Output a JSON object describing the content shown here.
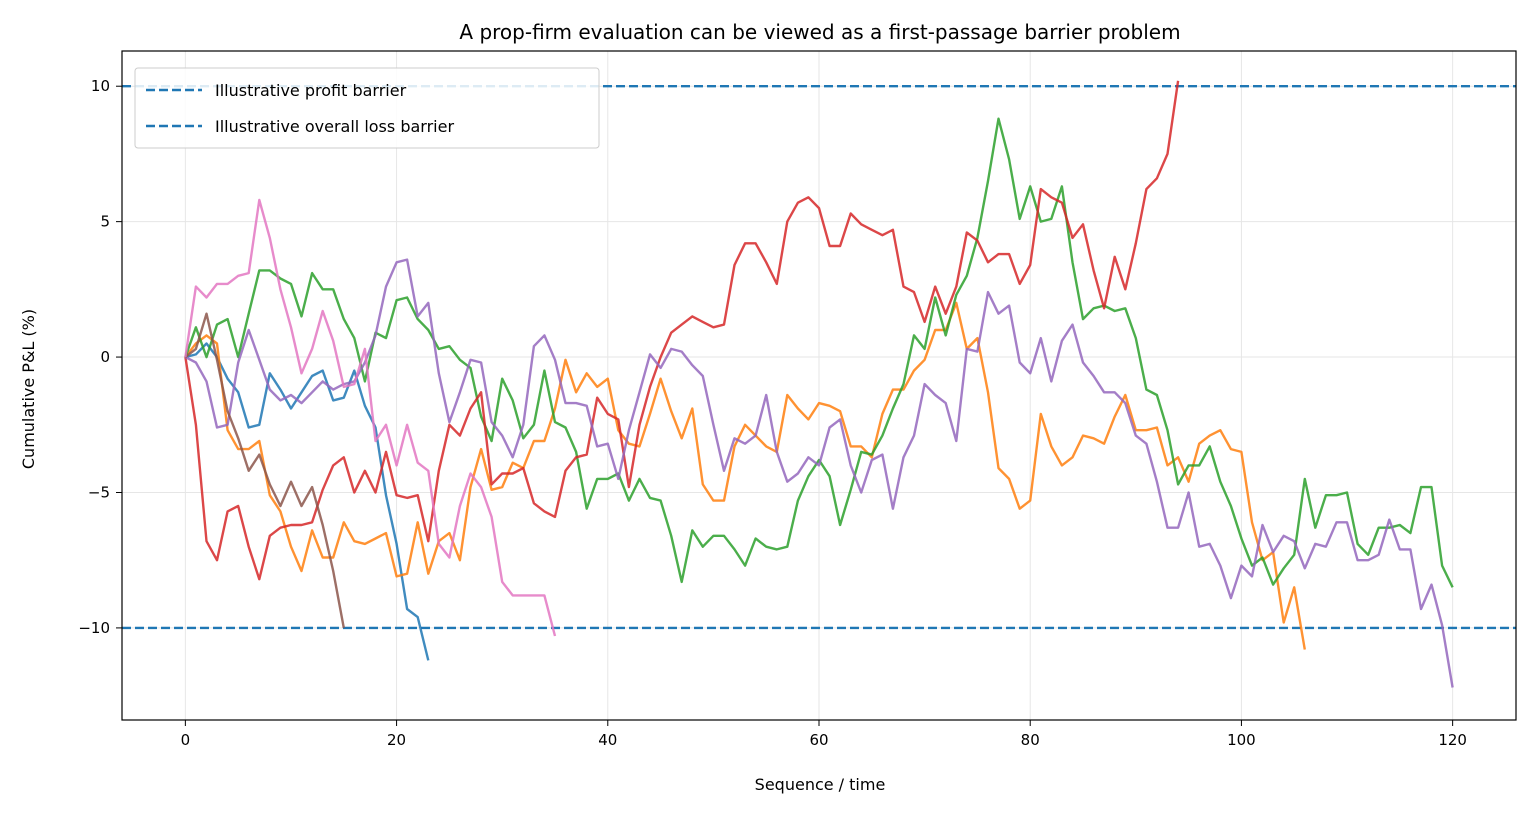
{
  "chart_data": {
    "type": "line",
    "title": "A prop-firm evaluation can be viewed as a first-passage barrier problem",
    "xlabel": "Sequence / time",
    "ylabel": "Cumulative P&L (%)",
    "xlim": [
      -6,
      126
    ],
    "ylim": [
      -13.4,
      11.3
    ],
    "xticks": [
      0,
      20,
      40,
      60,
      80,
      100,
      120
    ],
    "xtick_labels": [
      "0",
      "20",
      "40",
      "60",
      "80",
      "100",
      "120"
    ],
    "yticks": [
      -10,
      -5,
      0,
      5,
      10
    ],
    "ytick_labels": [
      "−10",
      "−5",
      "0",
      "5",
      "10"
    ],
    "grid": true,
    "legend_placement": "top-left",
    "barriers": [
      {
        "label": "Illustrative profit barrier",
        "y": 10,
        "color": "#1f77b4",
        "style": "dashed"
      },
      {
        "label": "Illustrative overall loss barrier",
        "y": -10,
        "color": "#1f77b4",
        "style": "dashed"
      }
    ],
    "series": [
      {
        "color": "#1f77b4",
        "x": [
          0,
          1,
          2,
          3,
          4,
          5,
          6,
          7,
          8,
          9,
          10,
          11,
          12,
          13,
          14,
          15,
          16,
          17,
          18,
          19,
          20,
          21,
          22,
          23
        ],
        "y": [
          0,
          0.1,
          0.5,
          0,
          -0.8,
          -1.3,
          -2.6,
          -2.5,
          -0.6,
          -1.2,
          -1.9,
          -1.3,
          -0.7,
          -0.5,
          -1.6,
          -1.5,
          -0.5,
          -1.8,
          -2.6,
          -5.1,
          -6.9,
          -9.3,
          -9.6,
          -11.2
        ]
      },
      {
        "color": "#ff7f0e",
        "x": [
          0,
          1,
          2,
          3,
          4,
          5,
          6,
          7,
          8,
          9,
          10,
          11,
          12,
          13,
          14,
          15,
          16,
          17,
          18,
          19,
          20,
          21,
          22,
          23,
          24,
          25,
          26,
          27,
          28,
          29,
          30,
          31,
          32,
          33,
          34,
          35,
          36,
          37,
          38,
          39,
          40,
          41,
          42,
          43,
          44,
          45,
          46,
          47,
          48,
          49,
          50,
          51,
          52,
          53,
          54,
          55,
          56,
          57,
          58,
          59,
          60,
          61,
          62,
          63,
          64,
          65,
          66,
          67,
          68,
          69,
          70,
          71,
          72,
          73,
          74,
          75,
          76,
          77,
          78,
          79,
          80,
          81,
          82,
          83,
          84,
          85,
          86,
          87,
          88,
          89,
          90,
          91,
          92,
          93,
          94,
          95,
          96,
          97,
          98,
          99,
          100,
          101,
          102,
          103,
          104,
          105,
          106
        ],
        "y": [
          0,
          0.5,
          0.8,
          0.5,
          -2.7,
          -3.4,
          -3.4,
          -3.1,
          -5.1,
          -5.7,
          -7,
          -7.9,
          -6.4,
          -7.4,
          -7.4,
          -6.1,
          -6.8,
          -6.9,
          -6.7,
          -6.5,
          -8.1,
          -8,
          -6.1,
          -8,
          -6.8,
          -6.5,
          -7.5,
          -4.8,
          -3.4,
          -4.9,
          -4.8,
          -3.9,
          -4.1,
          -3.1,
          -3.1,
          -1.9,
          -0.1,
          -1.3,
          -0.6,
          -1.1,
          -0.8,
          -2.7,
          -3.2,
          -3.3,
          -2.1,
          -0.8,
          -2,
          -3,
          -1.9,
          -4.7,
          -5.3,
          -5.3,
          -3.3,
          -2.5,
          -2.9,
          -3.3,
          -3.5,
          -1.4,
          -1.9,
          -2.3,
          -1.7,
          -1.8,
          -2,
          -3.3,
          -3.3,
          -3.7,
          -2.1,
          -1.2,
          -1.2,
          -0.5,
          -0.1,
          1,
          1,
          2,
          0.3,
          0.7,
          -1.3,
          -4.1,
          -4.5,
          -5.6,
          -5.3,
          -2.1,
          -3.3,
          -4,
          -3.7,
          -2.9,
          -3,
          -3.2,
          -2.2,
          -1.4,
          -2.7,
          -2.7,
          -2.6,
          -4,
          -3.7,
          -4.6,
          -3.2,
          -2.9,
          -2.7,
          -3.4,
          -3.5,
          -6.1,
          -7.5,
          -7.2,
          -9.8,
          -8.5,
          -10.8
        ]
      },
      {
        "color": "#2ca02c",
        "x": [
          0,
          1,
          2,
          3,
          4,
          5,
          6,
          7,
          8,
          9,
          10,
          11,
          12,
          13,
          14,
          15,
          16,
          17,
          18,
          19,
          20,
          21,
          22,
          23,
          24,
          25,
          26,
          27,
          28,
          29,
          30,
          31,
          32,
          33,
          34,
          35,
          36,
          37,
          38,
          39,
          40,
          41,
          42,
          43,
          44,
          45,
          46,
          47,
          48,
          49,
          50,
          51,
          52,
          53,
          54,
          55,
          56,
          57,
          58,
          59,
          60,
          61,
          62,
          63,
          64,
          65,
          66,
          67,
          68,
          69,
          70,
          71,
          72,
          73,
          74,
          75,
          76,
          77,
          78,
          79,
          80,
          81,
          82,
          83,
          84,
          85,
          86,
          87,
          88,
          89,
          90,
          91,
          92,
          93,
          94,
          95,
          96,
          97,
          98,
          99,
          100,
          101,
          102,
          103,
          104,
          105,
          106,
          107,
          108,
          109,
          110,
          111,
          112,
          113,
          114,
          115,
          116,
          117,
          118,
          119,
          120
        ],
        "y": [
          0,
          1.1,
          0,
          1.2,
          1.4,
          0,
          1.6,
          3.2,
          3.2,
          2.9,
          2.7,
          1.5,
          3.1,
          2.5,
          2.5,
          1.4,
          0.7,
          -0.9,
          0.9,
          0.7,
          2.1,
          2.2,
          1.4,
          1,
          0.3,
          0.4,
          -0.1,
          -0.4,
          -2.2,
          -3.1,
          -0.8,
          -1.6,
          -3,
          -2.5,
          -0.5,
          -2.4,
          -2.6,
          -3.5,
          -5.6,
          -4.5,
          -4.5,
          -4.3,
          -5.3,
          -4.5,
          -5.2,
          -5.3,
          -6.6,
          -8.3,
          -6.4,
          -7,
          -6.6,
          -6.6,
          -7.1,
          -7.7,
          -6.7,
          -7,
          -7.1,
          -7,
          -5.3,
          -4.4,
          -3.8,
          -4.4,
          -6.2,
          -4.9,
          -3.5,
          -3.6,
          -2.9,
          -1.9,
          -1,
          0.8,
          0.3,
          2.2,
          0.8,
          2.3,
          3,
          4.4,
          6.5,
          8.8,
          7.3,
          5.1,
          6.3,
          5,
          5.1,
          6.3,
          3.5,
          1.4,
          1.8,
          1.9,
          1.7,
          1.8,
          0.7,
          -1.2,
          -1.4,
          -2.7,
          -4.7,
          -4,
          -4,
          -3.3,
          -4.6,
          -5.5,
          -6.7,
          -7.7,
          -7.4,
          -8.4,
          -7.8,
          -7.3,
          -4.5,
          -6.3,
          -5.1,
          -5.1,
          -5,
          -6.9,
          -7.3,
          -6.3,
          -6.3,
          -6.2,
          -6.5,
          -4.8,
          -4.8,
          -7.7,
          -8.5
        ]
      },
      {
        "color": "#d62728",
        "x": [
          0,
          1,
          2,
          3,
          4,
          5,
          6,
          7,
          8,
          9,
          10,
          11,
          12,
          13,
          14,
          15,
          16,
          17,
          18,
          19,
          20,
          21,
          22,
          23,
          24,
          25,
          26,
          27,
          28,
          29,
          30,
          31,
          32,
          33,
          34,
          35,
          36,
          37,
          38,
          39,
          40,
          41,
          42,
          43,
          44,
          45,
          46,
          47,
          48,
          49,
          50,
          51,
          52,
          53,
          54,
          55,
          56,
          57,
          58,
          59,
          60,
          61,
          62,
          63,
          64,
          65,
          66,
          67,
          68,
          69,
          70,
          71,
          72,
          73,
          74,
          75,
          76,
          77,
          78,
          79,
          80,
          81,
          82,
          83,
          84,
          85,
          86,
          87,
          88,
          89,
          90,
          91,
          92,
          93,
          94
        ],
        "y": [
          0,
          -2.5,
          -6.8,
          -7.5,
          -5.7,
          -5.5,
          -7,
          -8.2,
          -6.6,
          -6.3,
          -6.2,
          -6.2,
          -6.1,
          -4.9,
          -4,
          -3.7,
          -5,
          -4.2,
          -5,
          -3.5,
          -5.1,
          -5.2,
          -5.1,
          -6.8,
          -4.2,
          -2.5,
          -2.9,
          -1.9,
          -1.3,
          -4.7,
          -4.3,
          -4.3,
          -4.1,
          -5.4,
          -5.7,
          -5.9,
          -4.2,
          -3.7,
          -3.6,
          -1.5,
          -2.1,
          -2.3,
          -4.8,
          -2.5,
          -1.1,
          0,
          0.9,
          1.2,
          1.5,
          1.3,
          1.1,
          1.2,
          3.4,
          4.2,
          4.2,
          3.5,
          2.7,
          5,
          5.7,
          5.9,
          5.5,
          4.1,
          4.1,
          5.3,
          4.9,
          4.7,
          4.5,
          4.7,
          2.6,
          2.4,
          1.3,
          2.6,
          1.6,
          2.6,
          4.6,
          4.3,
          3.5,
          3.8,
          3.8,
          2.7,
          3.4,
          6.2,
          5.9,
          5.7,
          4.4,
          4.9,
          3.2,
          1.8,
          3.7,
          2.5,
          4.2,
          6.2,
          6.6,
          7.5,
          10.2
        ]
      },
      {
        "color": "#9467bd",
        "x": [
          0,
          1,
          2,
          3,
          4,
          5,
          6,
          7,
          8,
          9,
          10,
          11,
          12,
          13,
          14,
          15,
          16,
          17,
          18,
          19,
          20,
          21,
          22,
          23,
          24,
          25,
          26,
          27,
          28,
          29,
          30,
          31,
          32,
          33,
          34,
          35,
          36,
          37,
          38,
          39,
          40,
          41,
          42,
          43,
          44,
          45,
          46,
          47,
          48,
          49,
          50,
          51,
          52,
          53,
          54,
          55,
          56,
          57,
          58,
          59,
          60,
          61,
          62,
          63,
          64,
          65,
          66,
          67,
          68,
          69,
          70,
          71,
          72,
          73,
          74,
          75,
          76,
          77,
          78,
          79,
          80,
          81,
          82,
          83,
          84,
          85,
          86,
          87,
          88,
          89,
          90,
          91,
          92,
          93,
          94,
          95,
          96,
          97,
          98,
          99,
          100,
          101,
          102,
          103,
          104,
          105,
          106,
          107,
          108,
          109,
          110,
          111,
          112,
          113,
          114,
          115,
          116,
          117,
          118,
          119,
          120
        ],
        "y": [
          0,
          -0.2,
          -0.9,
          -2.6,
          -2.5,
          -0.2,
          1,
          -0.1,
          -1.2,
          -1.6,
          -1.4,
          -1.7,
          -1.3,
          -0.9,
          -1.2,
          -1,
          -0.9,
          -0.2,
          0.8,
          2.6,
          3.5,
          3.6,
          1.5,
          2,
          -0.6,
          -2.4,
          -1.3,
          -0.1,
          -0.2,
          -2.4,
          -2.9,
          -3.7,
          -2.5,
          0.4,
          0.8,
          -0.1,
          -1.7,
          -1.7,
          -1.8,
          -3.3,
          -3.2,
          -4.5,
          -2.7,
          -1.3,
          0.1,
          -0.4,
          0.3,
          0.2,
          -0.3,
          -0.7,
          -2.5,
          -4.2,
          -3,
          -3.2,
          -2.9,
          -1.4,
          -3.5,
          -4.6,
          -4.3,
          -3.7,
          -4,
          -2.6,
          -2.3,
          -4,
          -5,
          -3.8,
          -3.6,
          -5.6,
          -3.7,
          -2.9,
          -1,
          -1.4,
          -1.7,
          -3.1,
          0.3,
          0.2,
          2.4,
          1.6,
          1.9,
          -0.2,
          -0.6,
          0.7,
          -0.9,
          0.6,
          1.2,
          -0.2,
          -0.7,
          -1.3,
          -1.3,
          -1.7,
          -2.9,
          -3.2,
          -4.6,
          -6.3,
          -6.3,
          -5,
          -7,
          -6.9,
          -7.7,
          -8.9,
          -7.7,
          -8.1,
          -6.2,
          -7.2,
          -6.6,
          -6.8,
          -7.8,
          -6.9,
          -7,
          -6.1,
          -6.1,
          -7.5,
          -7.5,
          -7.3,
          -6,
          -7.1,
          -7.1,
          -9.3,
          -8.4,
          -9.9,
          -12.2
        ]
      },
      {
        "color": "#8c564b",
        "x": [
          0,
          1,
          2,
          3,
          4,
          5,
          6,
          7,
          8,
          9,
          10,
          11,
          12,
          13,
          14,
          15
        ],
        "y": [
          0,
          0.3,
          1.6,
          -0.1,
          -2,
          -3,
          -4.2,
          -3.6,
          -4.7,
          -5.5,
          -4.6,
          -5.5,
          -4.8,
          -6.2,
          -7.9,
          -10
        ]
      },
      {
        "color": "#e377c2",
        "x": [
          0,
          1,
          2,
          3,
          4,
          5,
          6,
          7,
          8,
          9,
          10,
          11,
          12,
          13,
          14,
          15,
          16,
          17,
          18,
          19,
          20,
          21,
          22,
          23,
          24,
          25,
          26,
          27,
          28,
          29,
          30,
          31,
          32,
          33,
          34,
          35
        ],
        "y": [
          0,
          2.6,
          2.2,
          2.7,
          2.7,
          3,
          3.1,
          5.8,
          4.4,
          2.5,
          1.1,
          -0.6,
          0.3,
          1.7,
          0.6,
          -1.1,
          -1,
          0.3,
          -3.1,
          -2.5,
          -4,
          -2.5,
          -3.9,
          -4.2,
          -6.9,
          -7.4,
          -5.5,
          -4.3,
          -4.8,
          -5.9,
          -8.3,
          -8.8,
          -8.8,
          -8.8,
          -8.8,
          -10.3
        ]
      }
    ]
  }
}
